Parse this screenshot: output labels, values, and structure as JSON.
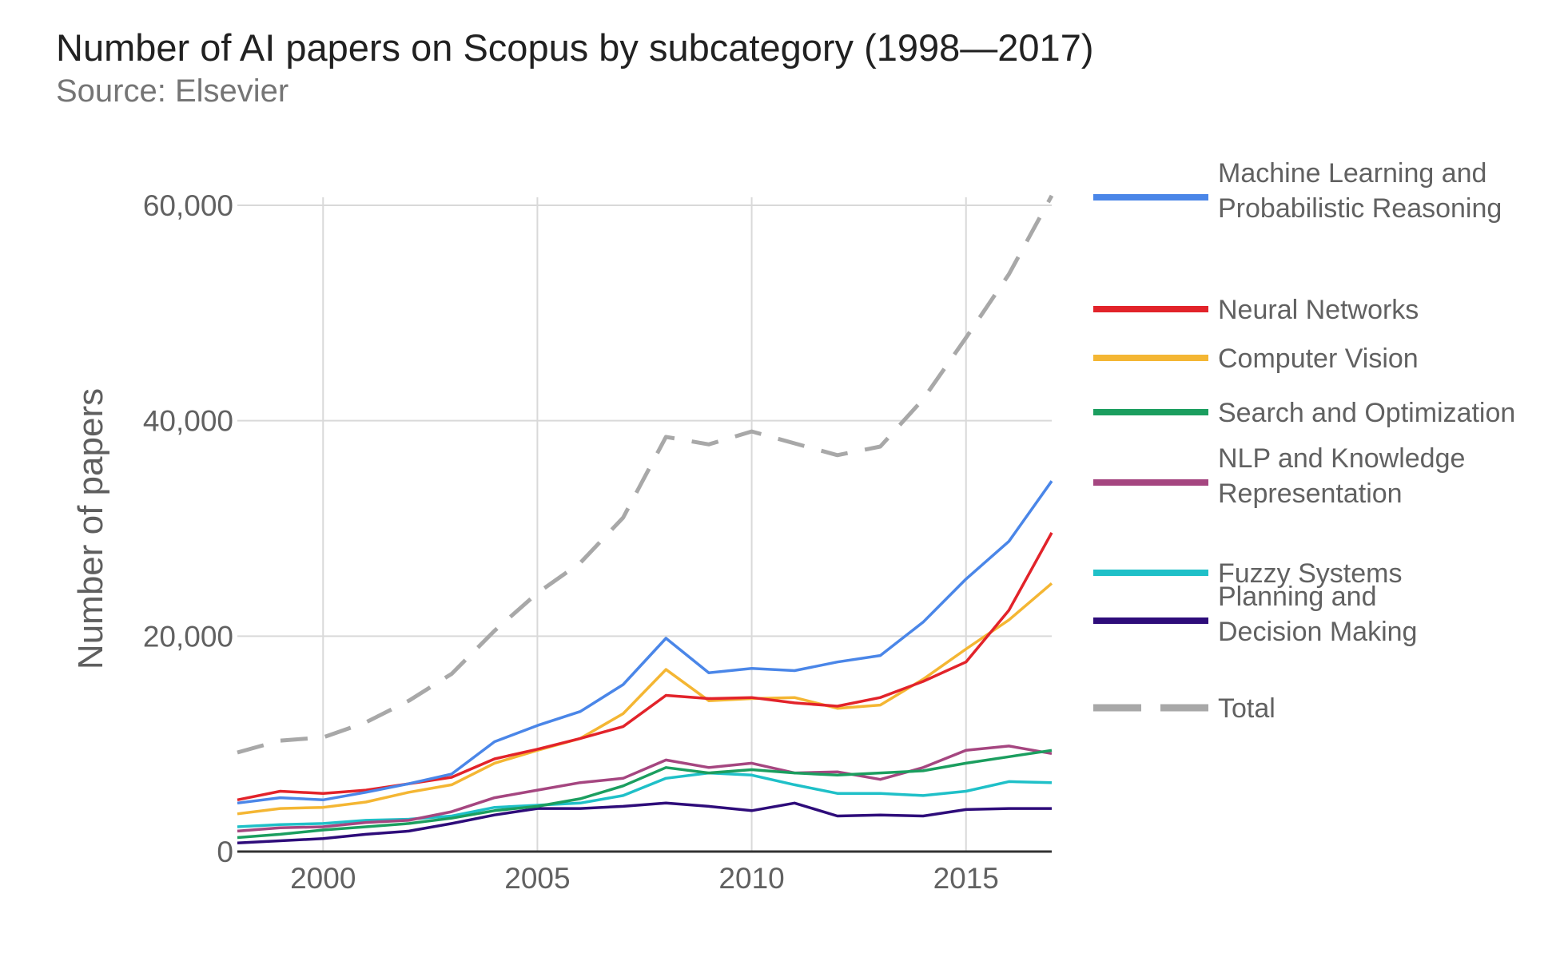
{
  "chart_data": {
    "type": "line",
    "title": "Number of AI papers on Scopus by subcategory (1998—2017)",
    "subtitle": "Source: Elsevier",
    "xlabel": "",
    "ylabel": "Number of papers",
    "xlim": [
      1998,
      2017
    ],
    "ylim": [
      0,
      60000
    ],
    "x_ticks": [
      2000,
      2005,
      2010,
      2015
    ],
    "y_ticks": [
      0,
      20000,
      40000,
      60000
    ],
    "y_tick_labels": [
      "0",
      "20,000",
      "40,000",
      "60,000"
    ],
    "grid": true,
    "legend_position": "right",
    "x": [
      1998,
      1999,
      2000,
      2001,
      2002,
      2003,
      2004,
      2005,
      2006,
      2007,
      2008,
      2009,
      2010,
      2011,
      2012,
      2013,
      2014,
      2015,
      2016,
      2017
    ],
    "series": [
      {
        "name": "Machine Learning and Probabilistic Reasoning",
        "legend_lines": [
          "Machine Learning and",
          "Probabilistic Reasoning"
        ],
        "color": "#4a86e8",
        "style": "solid",
        "values": [
          4500,
          5000,
          4800,
          5500,
          6300,
          7200,
          10200,
          11700,
          13000,
          15500,
          19800,
          16600,
          17000,
          16800,
          17600,
          18200,
          21300,
          25300,
          28800,
          34400
        ]
      },
      {
        "name": "Neural Networks",
        "legend_lines": [
          "Neural Networks"
        ],
        "color": "#e2232a",
        "style": "solid",
        "values": [
          4800,
          5600,
          5400,
          5700,
          6300,
          6900,
          8600,
          9500,
          10500,
          11600,
          14500,
          14200,
          14300,
          13800,
          13500,
          14300,
          15800,
          17600,
          22400,
          29600
        ]
      },
      {
        "name": "Computer Vision",
        "legend_lines": [
          "Computer Vision"
        ],
        "color": "#f4b633",
        "style": "solid",
        "values": [
          3500,
          4000,
          4100,
          4600,
          5500,
          6200,
          8200,
          9400,
          10500,
          12800,
          16900,
          14000,
          14200,
          14300,
          13300,
          13600,
          16000,
          18800,
          21500,
          24900
        ]
      },
      {
        "name": "Search and Optimization",
        "legend_lines": [
          "Search and Optimization"
        ],
        "color": "#1b9e5f",
        "style": "solid",
        "values": [
          1300,
          1600,
          2000,
          2300,
          2600,
          3100,
          3800,
          4200,
          4900,
          6100,
          7800,
          7300,
          7600,
          7300,
          7100,
          7300,
          7500,
          8200,
          8800,
          9400
        ]
      },
      {
        "name": "NLP and Knowledge Representation",
        "legend_lines": [
          "NLP and Knowledge",
          "Representation"
        ],
        "color": "#a54680",
        "style": "solid",
        "values": [
          1900,
          2200,
          2300,
          2700,
          2900,
          3700,
          5000,
          5700,
          6400,
          6800,
          8500,
          7800,
          8200,
          7300,
          7400,
          6700,
          7800,
          9400,
          9800,
          9100
        ]
      },
      {
        "name": "Fuzzy Systems",
        "legend_lines": [
          "Fuzzy Systems"
        ],
        "color": "#1fc0c8",
        "style": "solid",
        "values": [
          2300,
          2500,
          2600,
          2900,
          3000,
          3300,
          4100,
          4300,
          4500,
          5200,
          6800,
          7300,
          7100,
          6200,
          5400,
          5400,
          5200,
          5600,
          6500,
          6400
        ]
      },
      {
        "name": "Planning and Decision Making",
        "legend_lines": [
          "Planning and",
          "Decision Making"
        ],
        "color": "#2e0c7a",
        "style": "solid",
        "values": [
          800,
          1000,
          1200,
          1600,
          1900,
          2600,
          3400,
          4000,
          4000,
          4200,
          4500,
          4200,
          3800,
          4500,
          3300,
          3400,
          3300,
          3900,
          4000,
          4000
        ]
      },
      {
        "name": "Total",
        "legend_lines": [
          "Total"
        ],
        "color": "#a8a8a8",
        "style": "dashed",
        "values": [
          9200,
          10300,
          10600,
          12000,
          14000,
          16500,
          20500,
          24000,
          26800,
          31000,
          38500,
          37800,
          39000,
          37900,
          36800,
          37600,
          42000,
          47700,
          53600,
          60900
        ]
      }
    ]
  }
}
